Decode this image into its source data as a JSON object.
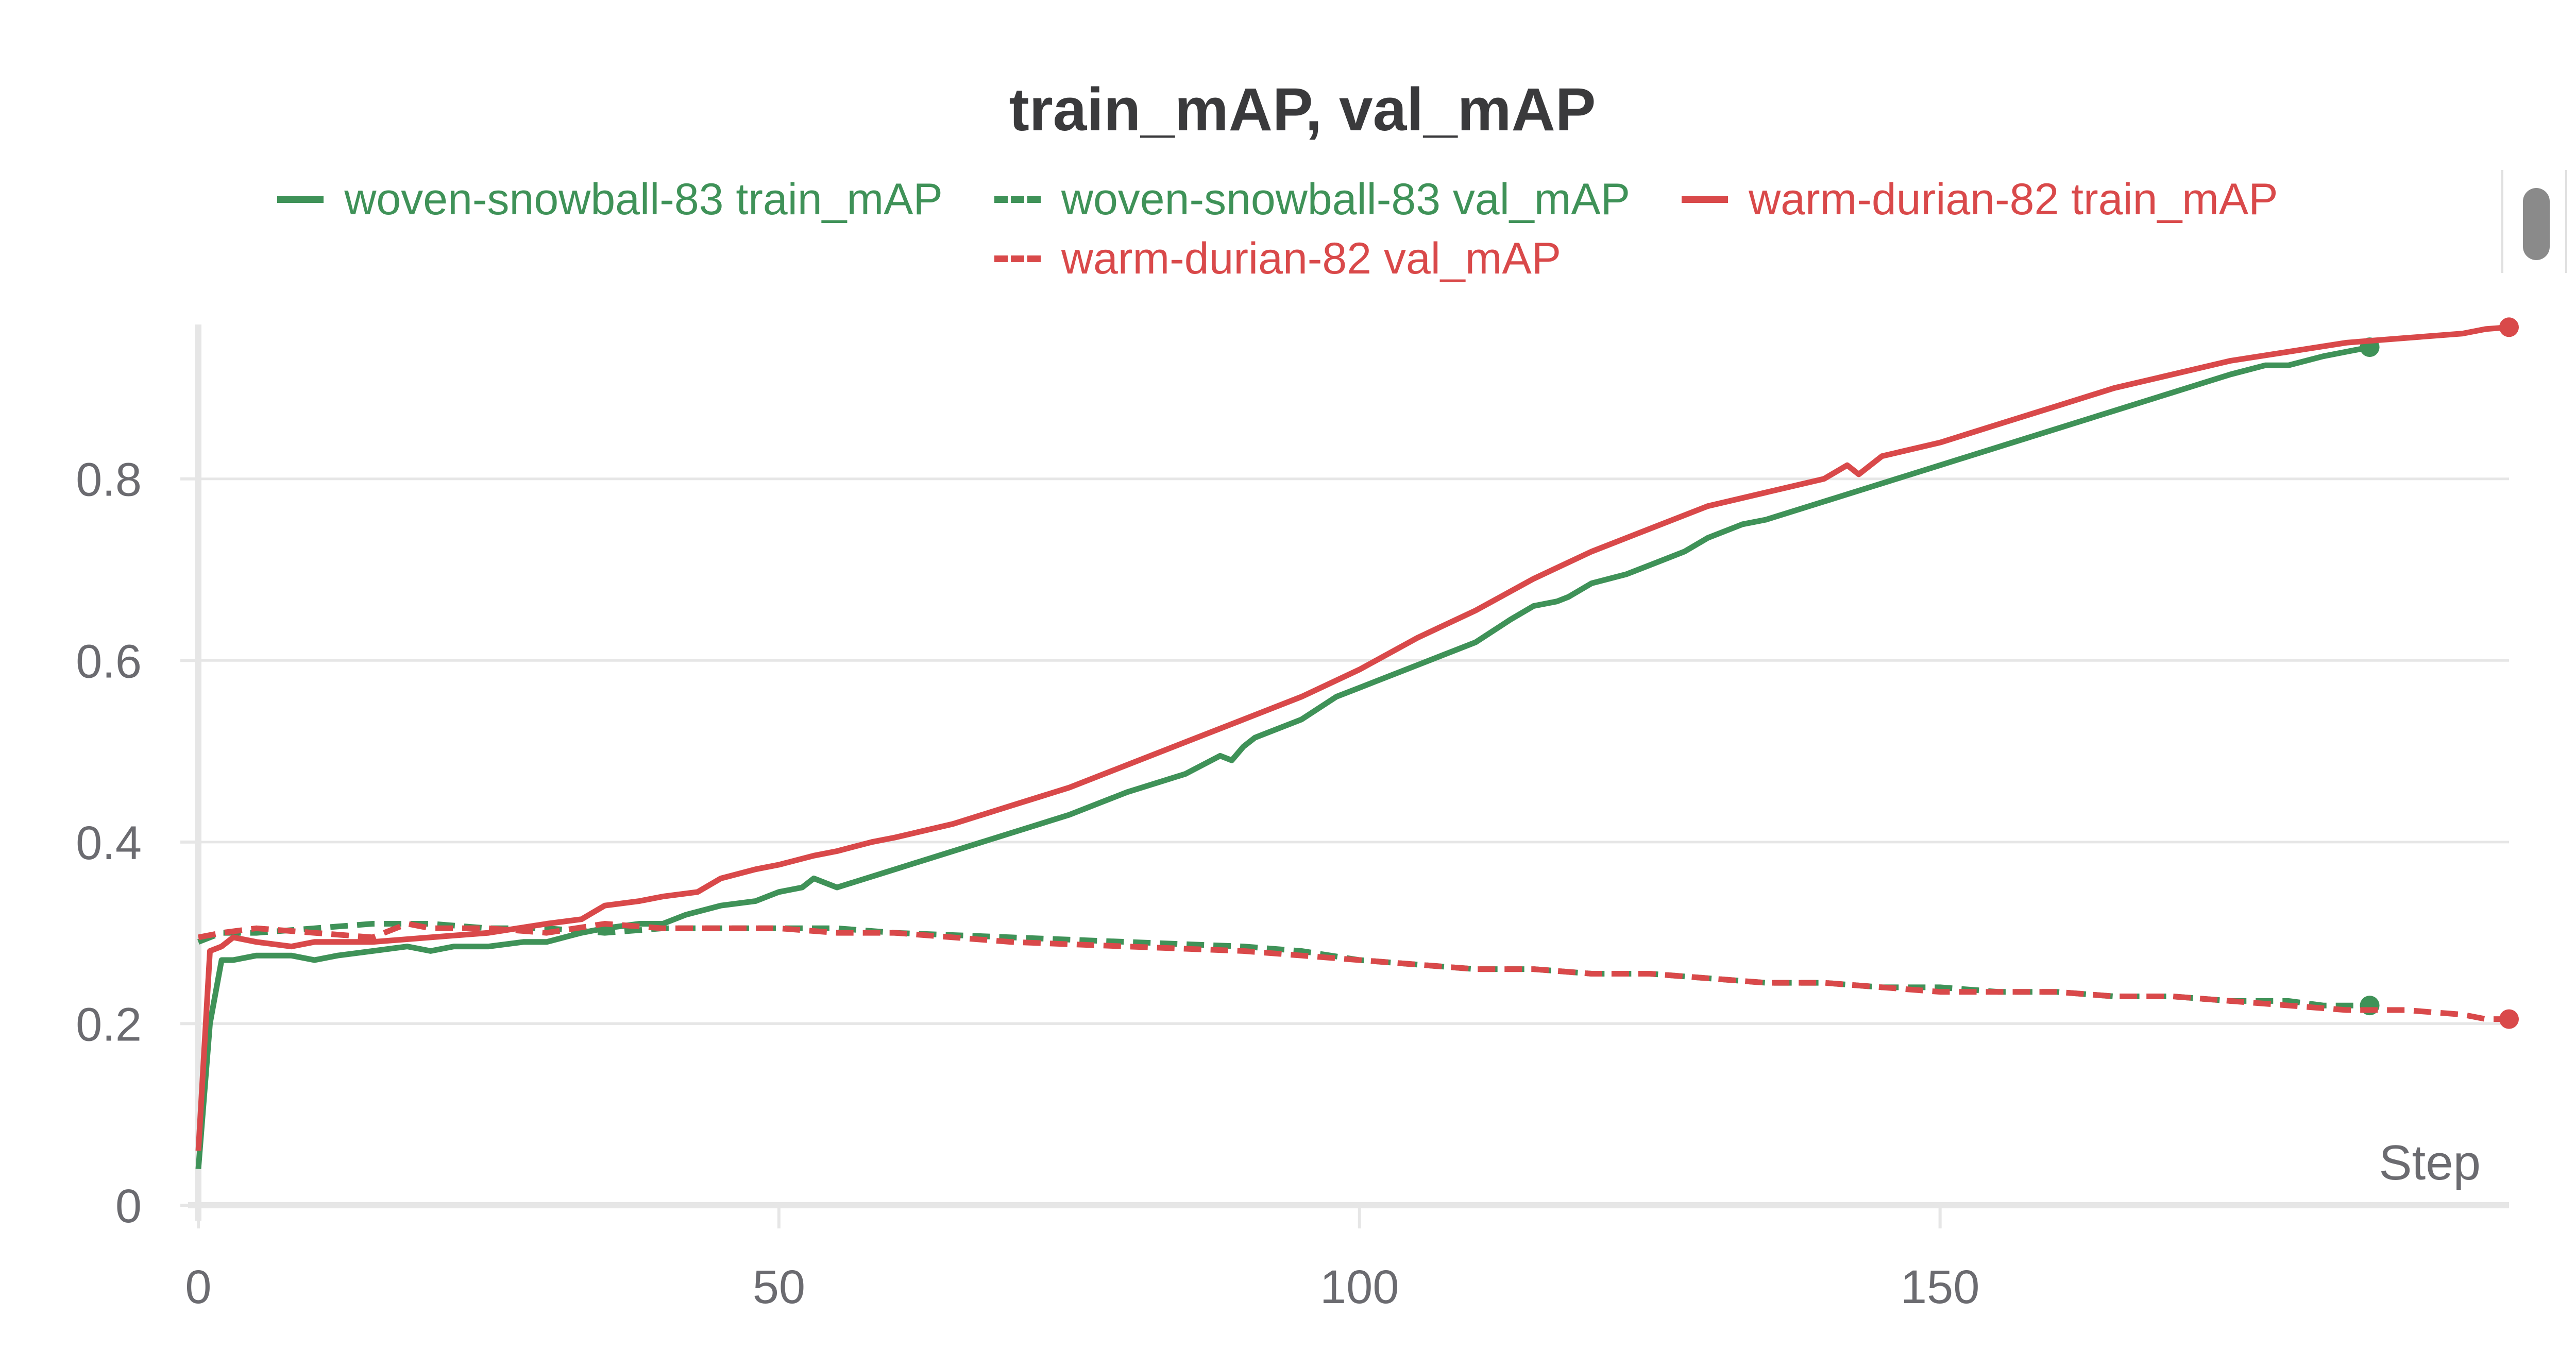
{
  "chart_data": {
    "type": "line",
    "title": "train_mAP, val_mAP",
    "xlabel": "Step",
    "ylabel": "",
    "xlim": [
      0,
      199
    ],
    "ylim": [
      0,
      0.97
    ],
    "x_ticks": [
      0,
      50,
      100,
      150
    ],
    "y_ticks": [
      0,
      0.2,
      0.4,
      0.6,
      0.8
    ],
    "grid": true,
    "legend_position": "top",
    "series": [
      {
        "name": "woven-snowball-83 train_mAP",
        "color": "#3f9258",
        "dash": "solid",
        "x": [
          0,
          1,
          2,
          3,
          5,
          8,
          10,
          12,
          15,
          18,
          20,
          22,
          25,
          28,
          30,
          33,
          35,
          38,
          40,
          42,
          45,
          48,
          50,
          52,
          53,
          55,
          60,
          65,
          70,
          75,
          78,
          80,
          85,
          88,
          89,
          90,
          91,
          92,
          95,
          98,
          100,
          103,
          105,
          108,
          110,
          113,
          115,
          117,
          118,
          120,
          123,
          125,
          128,
          130,
          133,
          135,
          140,
          145,
          150,
          155,
          160,
          165,
          170,
          175,
          178,
          180,
          183,
          185,
          187
        ],
        "y": [
          0.04,
          0.2,
          0.27,
          0.27,
          0.275,
          0.275,
          0.27,
          0.275,
          0.28,
          0.285,
          0.28,
          0.285,
          0.285,
          0.29,
          0.29,
          0.3,
          0.305,
          0.31,
          0.31,
          0.32,
          0.33,
          0.335,
          0.345,
          0.35,
          0.36,
          0.35,
          0.37,
          0.39,
          0.41,
          0.43,
          0.445,
          0.455,
          0.475,
          0.495,
          0.49,
          0.505,
          0.515,
          0.52,
          0.535,
          0.56,
          0.57,
          0.585,
          0.595,
          0.61,
          0.62,
          0.645,
          0.66,
          0.665,
          0.67,
          0.685,
          0.695,
          0.705,
          0.72,
          0.735,
          0.75,
          0.755,
          0.775,
          0.795,
          0.815,
          0.835,
          0.855,
          0.875,
          0.895,
          0.915,
          0.925,
          0.925,
          0.935,
          0.94,
          0.945
        ]
      },
      {
        "name": "woven-snowball-83 val_mAP",
        "color": "#3f9258",
        "dash": "dashed",
        "x": [
          0,
          2,
          5,
          10,
          15,
          20,
          25,
          30,
          35,
          40,
          45,
          50,
          55,
          60,
          70,
          80,
          90,
          95,
          100,
          105,
          110,
          115,
          120,
          125,
          130,
          135,
          140,
          145,
          150,
          155,
          160,
          165,
          170,
          175,
          180,
          183,
          185,
          187
        ],
        "y": [
          0.29,
          0.3,
          0.3,
          0.305,
          0.31,
          0.31,
          0.305,
          0.305,
          0.3,
          0.305,
          0.305,
          0.305,
          0.305,
          0.3,
          0.295,
          0.29,
          0.285,
          0.28,
          0.27,
          0.265,
          0.26,
          0.26,
          0.255,
          0.255,
          0.25,
          0.245,
          0.245,
          0.24,
          0.24,
          0.235,
          0.235,
          0.23,
          0.23,
          0.225,
          0.225,
          0.22,
          0.22,
          0.22
        ]
      },
      {
        "name": "warm-durian-82 train_mAP",
        "color": "#d9494a",
        "dash": "solid",
        "x": [
          0,
          1,
          2,
          3,
          5,
          8,
          10,
          15,
          20,
          25,
          30,
          33,
          35,
          38,
          40,
          43,
          45,
          48,
          50,
          53,
          55,
          58,
          60,
          65,
          70,
          75,
          80,
          85,
          90,
          95,
          100,
          105,
          110,
          115,
          120,
          125,
          130,
          135,
          140,
          142,
          143,
          145,
          150,
          155,
          160,
          165,
          170,
          175,
          180,
          185,
          190,
          195,
          197,
          199
        ],
        "y": [
          0.06,
          0.28,
          0.285,
          0.295,
          0.29,
          0.285,
          0.29,
          0.29,
          0.295,
          0.3,
          0.31,
          0.315,
          0.33,
          0.335,
          0.34,
          0.345,
          0.36,
          0.37,
          0.375,
          0.385,
          0.39,
          0.4,
          0.405,
          0.42,
          0.44,
          0.46,
          0.485,
          0.51,
          0.535,
          0.56,
          0.59,
          0.625,
          0.655,
          0.69,
          0.72,
          0.745,
          0.77,
          0.785,
          0.8,
          0.815,
          0.805,
          0.825,
          0.84,
          0.86,
          0.88,
          0.9,
          0.915,
          0.93,
          0.94,
          0.95,
          0.955,
          0.96,
          0.965,
          0.967
        ]
      },
      {
        "name": "warm-durian-82 val_mAP",
        "color": "#d9494a",
        "dash": "dashed",
        "x": [
          0,
          2,
          5,
          10,
          15,
          18,
          20,
          25,
          30,
          35,
          40,
          45,
          50,
          55,
          60,
          70,
          80,
          90,
          95,
          100,
          105,
          110,
          115,
          120,
          125,
          130,
          135,
          140,
          145,
          150,
          155,
          160,
          165,
          170,
          175,
          180,
          185,
          190,
          195,
          197,
          199
        ],
        "y": [
          0.295,
          0.3,
          0.305,
          0.3,
          0.295,
          0.31,
          0.305,
          0.305,
          0.3,
          0.31,
          0.305,
          0.305,
          0.305,
          0.3,
          0.3,
          0.29,
          0.285,
          0.28,
          0.275,
          0.27,
          0.265,
          0.26,
          0.26,
          0.255,
          0.255,
          0.25,
          0.245,
          0.245,
          0.24,
          0.235,
          0.235,
          0.235,
          0.23,
          0.23,
          0.225,
          0.22,
          0.215,
          0.215,
          0.21,
          0.205,
          0.205
        ]
      }
    ]
  }
}
